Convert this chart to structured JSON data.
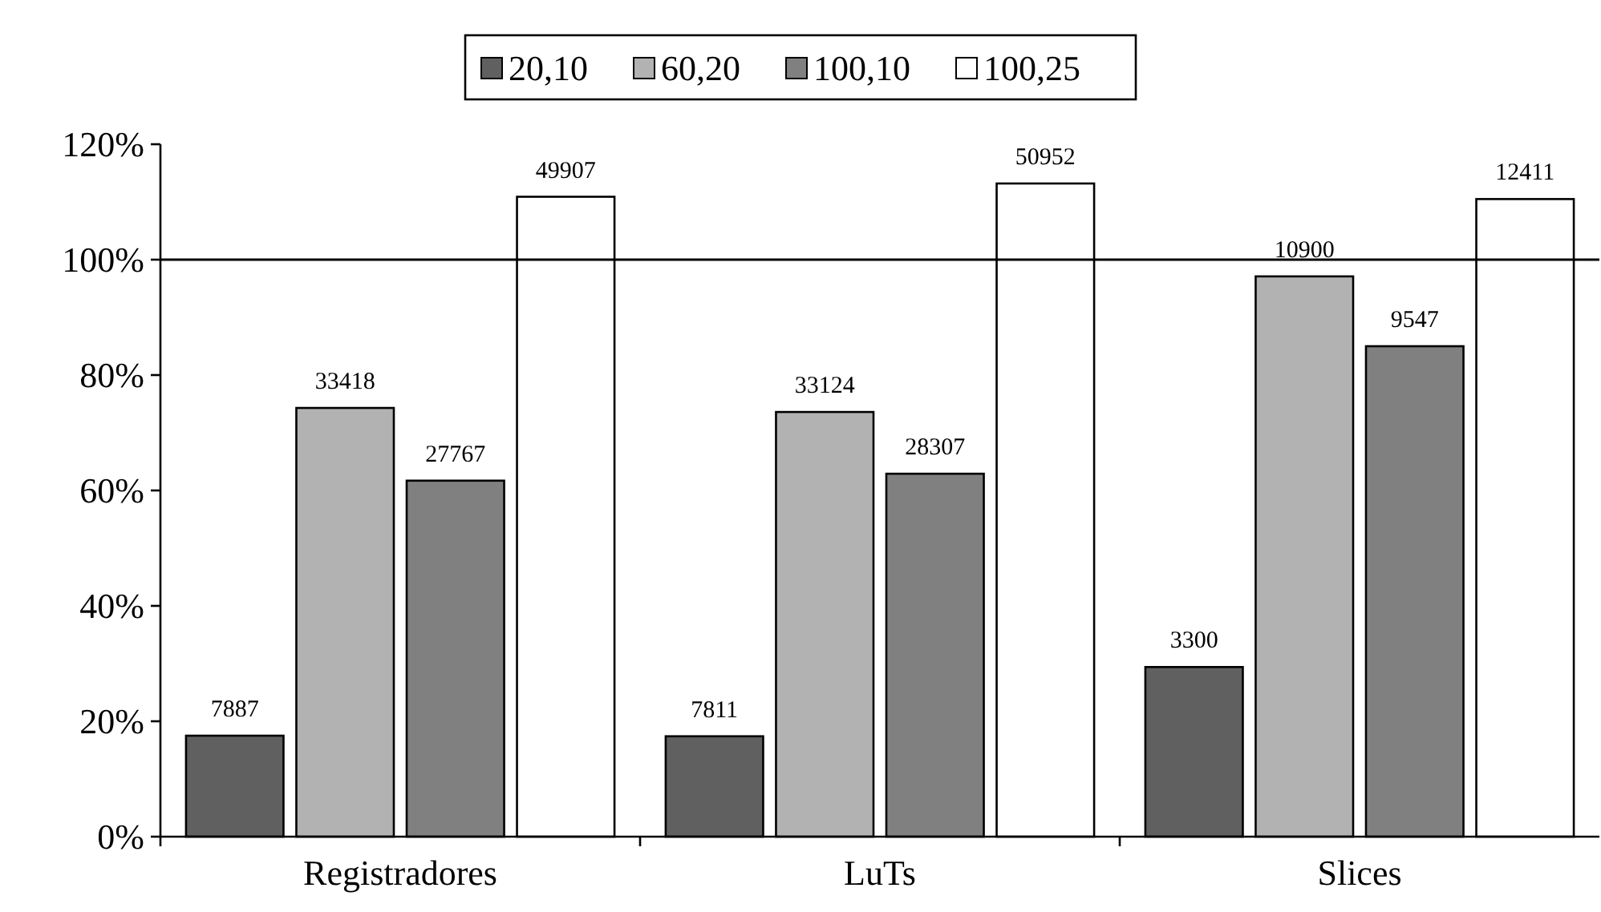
{
  "chart_data": {
    "type": "bar",
    "categories": [
      "Registradores",
      "LuTs",
      "Slices"
    ],
    "series": [
      {
        "name": "20,10",
        "color": "#606060",
        "values": [
          17.5,
          17.4,
          29.4
        ]
      },
      {
        "name": "60,20",
        "color": "#b2b2b2",
        "values": [
          74.3,
          73.6,
          97.1
        ]
      },
      {
        "name": "100,10",
        "color": "#808080",
        "values": [
          61.7,
          62.9,
          85.0
        ]
      },
      {
        "name": "100,25",
        "color": "#ffffff",
        "values": [
          110.9,
          113.2,
          110.5
        ]
      }
    ],
    "annotations": [
      "7887",
      "33418",
      "27767",
      "49907",
      "7811",
      "33124",
      "28307",
      "50952",
      "3300",
      "10900",
      "9547",
      "12411"
    ],
    "ylim": [
      0,
      120
    ],
    "yticks": [
      {
        "value": 0,
        "label": "0%"
      },
      {
        "value": 20,
        "label": "20%"
      },
      {
        "value": 40,
        "label": "40%"
      },
      {
        "value": 60,
        "label": "60%"
      },
      {
        "value": 80,
        "label": "80%"
      },
      {
        "value": 100,
        "label": "100%"
      },
      {
        "value": 120,
        "label": "120%"
      }
    ],
    "ref_lines": [
      {
        "axis": "y",
        "value": 100,
        "color": "#000000"
      }
    ],
    "legend": "top",
    "grid": false
  }
}
